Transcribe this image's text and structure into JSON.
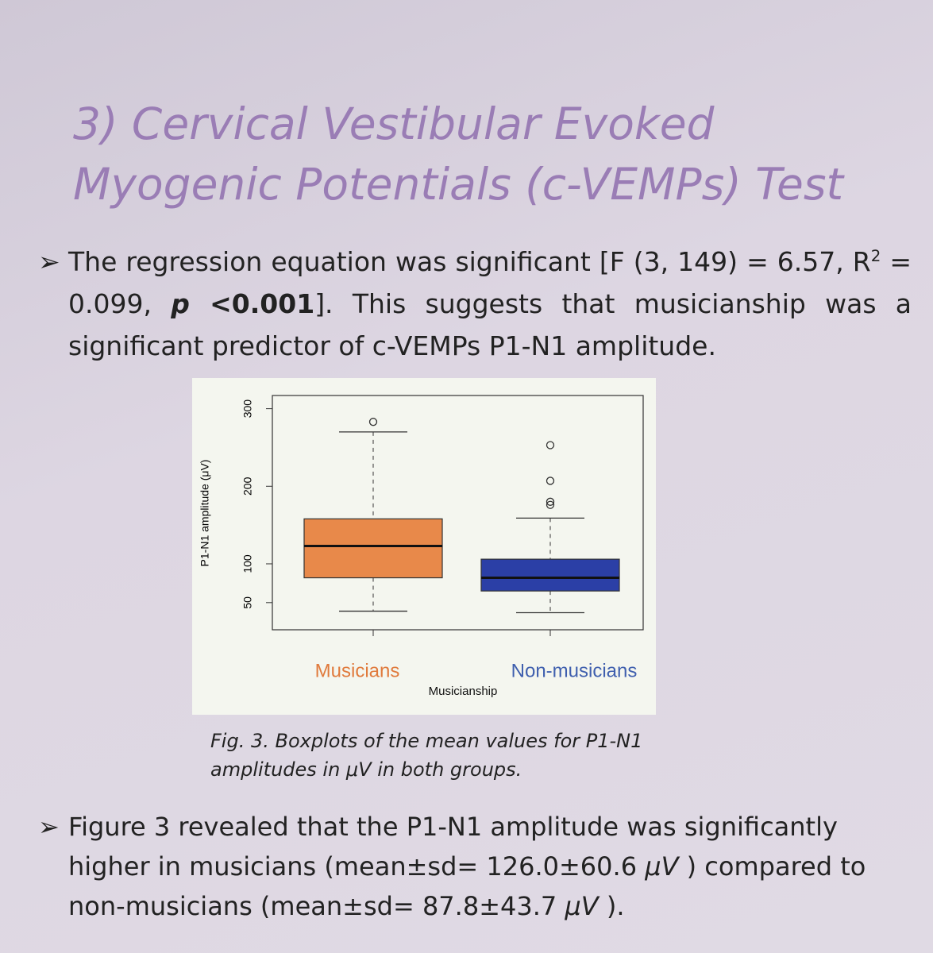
{
  "header": {
    "title": "3)   Cervical Vestibular Evoked Myogenic Potentials (c-VEMPs) Test"
  },
  "bullets": [
    {
      "segments": [
        {
          "text": "The regression equation was significant [F (3, 149) = 6.57, R"
        },
        {
          "text": "2",
          "style": "sup"
        },
        {
          "text": " = 0.099, "
        },
        {
          "text": "p",
          "style": "bold-italic"
        },
        {
          "text": " <0.001",
          "style": "bold"
        },
        {
          "text": "]. This suggests that musicianship was a significant predictor of c-VEMPs P1-N1 amplitude."
        }
      ]
    },
    {
      "segments": [
        {
          "text": "Figure 3 revealed that the P1-N1 amplitude was significantly higher in musicians (mean±sd= 126.0±60.6 "
        },
        {
          "text": "μV",
          "style": "italic"
        },
        {
          "text": " ) compared to non-musicians (mean±sd= 87.8±43.7 "
        },
        {
          "text": "μV",
          "style": "italic"
        },
        {
          "text": " )."
        }
      ]
    }
  ],
  "chart_data": {
    "type": "box",
    "ylabel": "P1-N1 amplitude (μV)",
    "xlabel": "Musicianship",
    "ylim": [
      15,
      317
    ],
    "yticks": [
      50,
      100,
      200,
      300
    ],
    "boxes": [
      {
        "category": "Musicians",
        "color": "#e8894a",
        "label_color": "#e07a3c",
        "whisker_low": 39,
        "q1": 82,
        "median": 123,
        "q3": 158,
        "whisker_high": 270,
        "outliers": [
          283
        ]
      },
      {
        "category": "Non-musicians",
        "color": "#2b3fa6",
        "label_color": "#3f5fae",
        "whisker_low": 37,
        "q1": 65,
        "median": 82,
        "q3": 106,
        "whisker_high": 159,
        "outliers": [
          253,
          207,
          180,
          176
        ]
      }
    ]
  },
  "caption": "Fig. 3. Boxplots of the mean values for P1-N1 amplitudes in μV in both groups."
}
